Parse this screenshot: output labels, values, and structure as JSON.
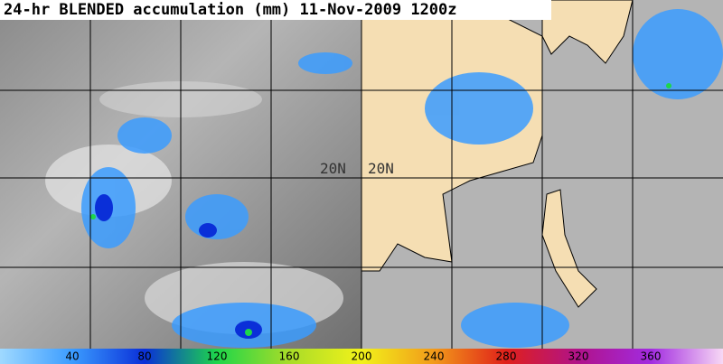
{
  "title": "24-hr BLENDED accumulation (mm) 11-Nov-2009 1200z",
  "grid_labels": [
    "20N",
    "20N"
  ],
  "colorbar": {
    "range": [
      0,
      400
    ],
    "ticks": [
      40,
      80,
      120,
      160,
      200,
      240,
      280,
      320,
      360
    ],
    "colors": [
      "#9fd9ff",
      "#3b9cff",
      "#0a2fd8",
      "#1dd64a",
      "#a8dc28",
      "#f2f21a",
      "#f29a1a",
      "#e0201a",
      "#b0128a",
      "#a22be0",
      "#f7d8f5"
    ]
  }
}
